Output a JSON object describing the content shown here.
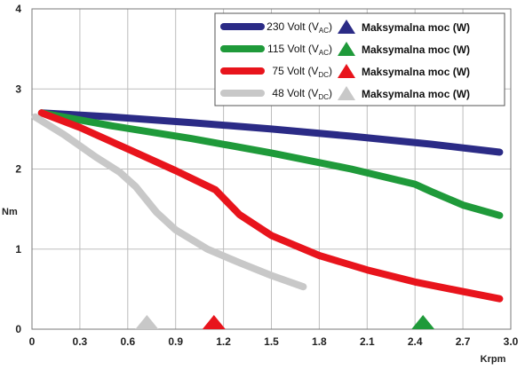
{
  "chart_data": {
    "type": "line",
    "xlabel": "Krpm",
    "ylabel": "Nm",
    "xlim": [
      0,
      3.0
    ],
    "ylim": [
      0,
      4
    ],
    "x_ticks": [
      "0",
      "0.3",
      "0.6",
      "0.9",
      "1.2",
      "1.5",
      "1.8",
      "2.1",
      "2.4",
      "2.7",
      "3.0"
    ],
    "y_ticks": [
      "0",
      "1",
      "2",
      "3",
      "4"
    ],
    "grid": true,
    "legend_position": "top-right",
    "series": [
      {
        "name": "230 Volt (VAC)",
        "name_prefix": "230 Volt (V",
        "name_sub": "AC",
        "name_suffix": ")",
        "color": "#2b2b86",
        "max_power_label": "Maksymalna moc (W)",
        "points": [
          [
            0.06,
            2.7
          ],
          [
            0.5,
            2.65
          ],
          [
            1.0,
            2.58
          ],
          [
            1.5,
            2.5
          ],
          [
            2.0,
            2.41
          ],
          [
            2.5,
            2.31
          ],
          [
            2.93,
            2.21
          ]
        ]
      },
      {
        "name": "115 Volt (VAC)",
        "name_prefix": "115 Volt (V",
        "name_sub": "AC",
        "name_suffix": ")",
        "color": "#1f9a3a",
        "max_power_label": "Maksymalna moc (W)",
        "max_power_x": 2.45,
        "points": [
          [
            0.06,
            2.7
          ],
          [
            0.5,
            2.54
          ],
          [
            1.0,
            2.38
          ],
          [
            1.5,
            2.2
          ],
          [
            2.0,
            2.0
          ],
          [
            2.4,
            1.81
          ],
          [
            2.5,
            1.72
          ],
          [
            2.7,
            1.55
          ],
          [
            2.93,
            1.42
          ]
        ]
      },
      {
        "name": "75 Volt (VDC)",
        "name_prefix": "75 Volt (V",
        "name_sub": "DC",
        "name_suffix": ")",
        "color": "#e8141c",
        "max_power_label": "Maksymalna moc (W)",
        "max_power_x": 1.14,
        "points": [
          [
            0.06,
            2.7
          ],
          [
            0.3,
            2.52
          ],
          [
            0.6,
            2.25
          ],
          [
            0.9,
            1.98
          ],
          [
            1.15,
            1.74
          ],
          [
            1.3,
            1.43
          ],
          [
            1.5,
            1.17
          ],
          [
            1.8,
            0.92
          ],
          [
            2.1,
            0.74
          ],
          [
            2.4,
            0.59
          ],
          [
            2.7,
            0.47
          ],
          [
            2.93,
            0.38
          ]
        ]
      },
      {
        "name": "48 Volt (VDC)",
        "name_prefix": "48 Volt (V",
        "name_sub": "DC",
        "name_suffix": ")",
        "color": "#c8c8c8",
        "max_power_label": "Maksymalna moc (W)",
        "max_power_x": 0.72,
        "points": [
          [
            0.02,
            2.65
          ],
          [
            0.2,
            2.43
          ],
          [
            0.4,
            2.15
          ],
          [
            0.55,
            1.96
          ],
          [
            0.65,
            1.78
          ],
          [
            0.78,
            1.46
          ],
          [
            0.9,
            1.24
          ],
          [
            1.1,
            1.0
          ],
          [
            1.3,
            0.83
          ],
          [
            1.5,
            0.67
          ],
          [
            1.7,
            0.53
          ]
        ]
      }
    ]
  }
}
